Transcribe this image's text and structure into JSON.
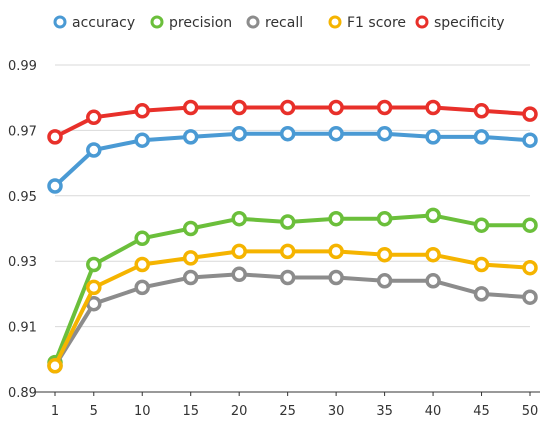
{
  "chart_data": {
    "type": "line",
    "x": [
      1,
      5,
      10,
      15,
      20,
      25,
      30,
      35,
      40,
      45,
      50
    ],
    "xticks": [
      "1",
      "5",
      "10",
      "15",
      "20",
      "25",
      "30",
      "35",
      "40",
      "45",
      "50"
    ],
    "yticks": [
      "0.89",
      "0.91",
      "0.93",
      "0.95",
      "0.97",
      "0.99"
    ],
    "ylim": [
      0.89,
      0.99
    ],
    "grid": "horizontal",
    "legend_position": "top",
    "title": "",
    "xlabel": "",
    "ylabel": "",
    "series": [
      {
        "name": "accuracy",
        "color": "#4a9ad4",
        "values": [
          0.953,
          0.964,
          0.967,
          0.968,
          0.969,
          0.969,
          0.969,
          0.969,
          0.968,
          0.968,
          0.967
        ]
      },
      {
        "name": "precision",
        "color": "#6bbf3b",
        "values": [
          0.899,
          0.929,
          0.937,
          0.94,
          0.943,
          0.942,
          0.943,
          0.943,
          0.944,
          0.941,
          0.941
        ]
      },
      {
        "name": "recall",
        "color": "#8c8c8c",
        "values": [
          0.898,
          0.917,
          0.922,
          0.925,
          0.926,
          0.925,
          0.925,
          0.924,
          0.924,
          0.92,
          0.919
        ]
      },
      {
        "name": "F1 score",
        "color": "#f5b400",
        "values": [
          0.898,
          0.922,
          0.929,
          0.931,
          0.933,
          0.933,
          0.933,
          0.932,
          0.932,
          0.929,
          0.928
        ]
      },
      {
        "name": "specificity",
        "color": "#e8302a",
        "values": [
          0.968,
          0.974,
          0.976,
          0.977,
          0.977,
          0.977,
          0.977,
          0.977,
          0.977,
          0.976,
          0.975
        ]
      }
    ]
  }
}
